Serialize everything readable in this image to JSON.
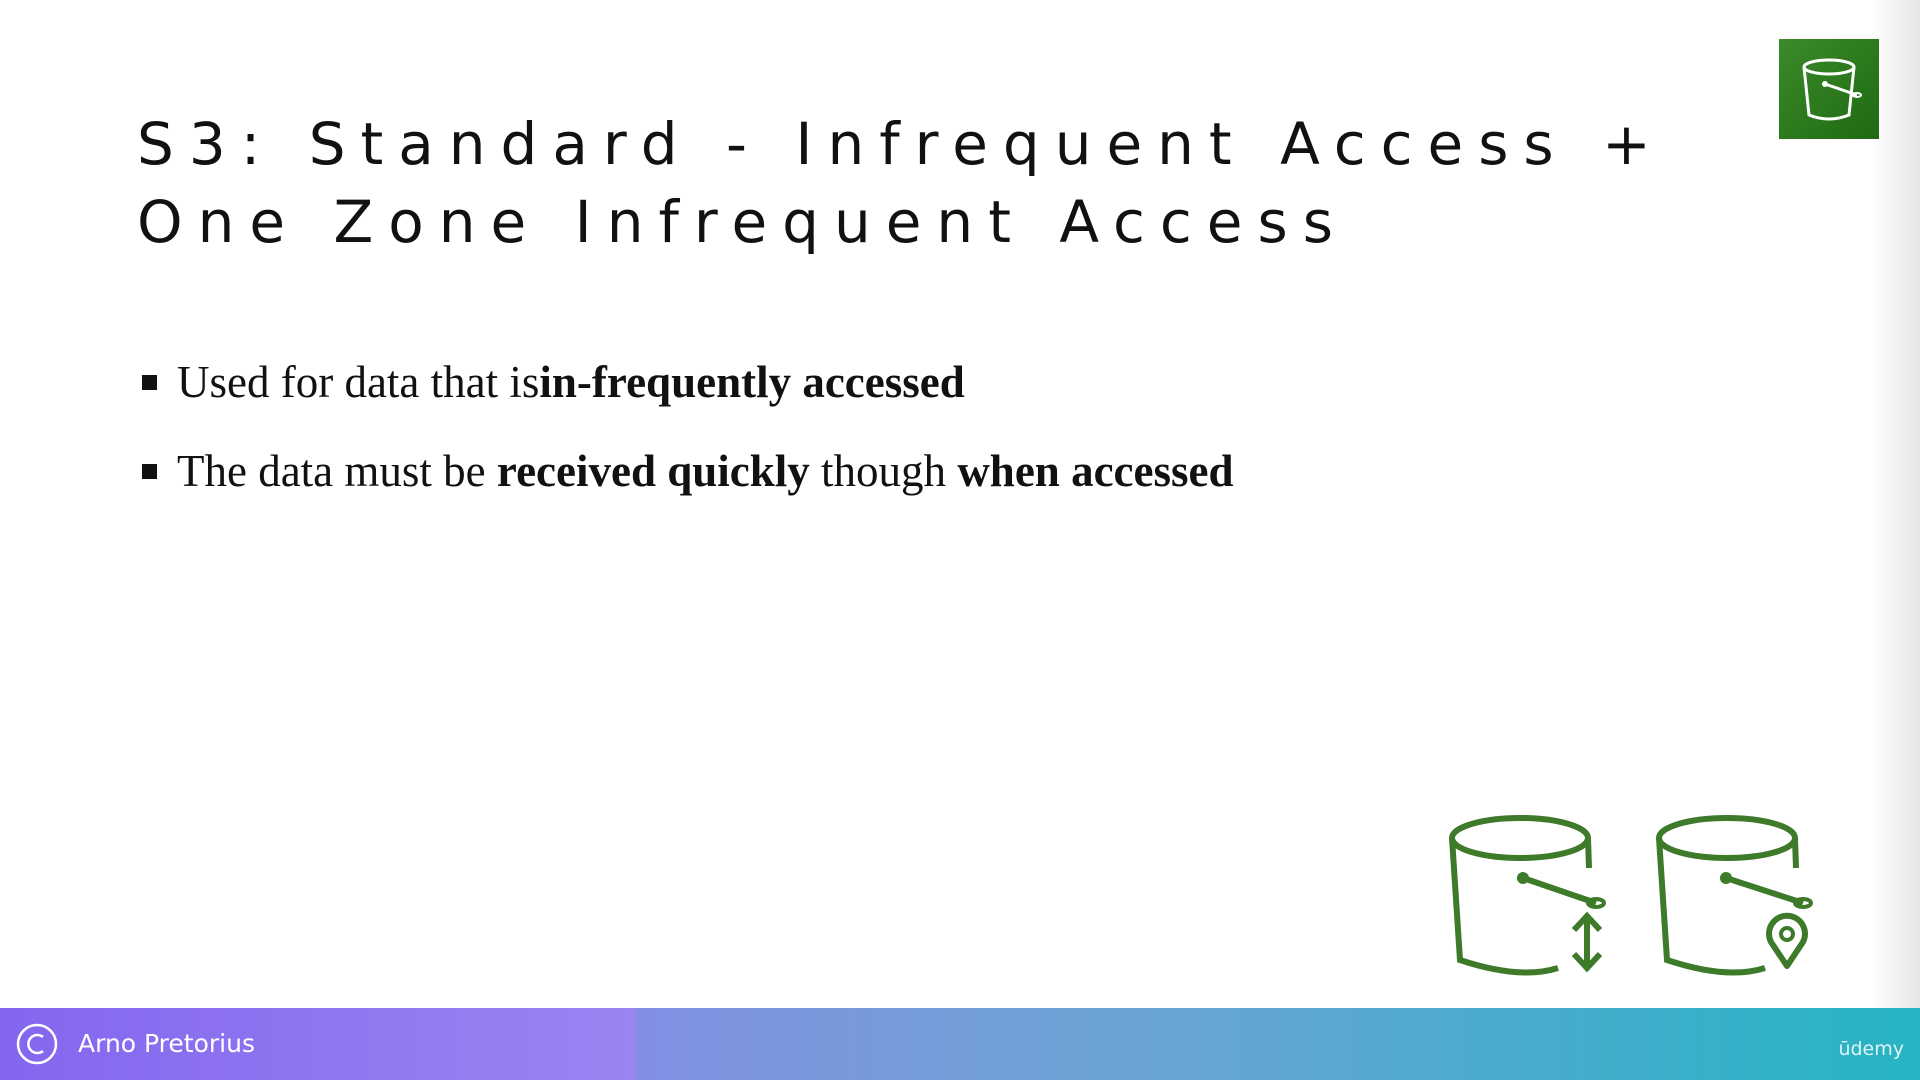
{
  "slide": {
    "title": "S3: Standard - Infrequent Access + One Zone Infrequent Access",
    "bullets": [
      {
        "parts": [
          {
            "text": "Used for data that is ",
            "bold": false
          },
          {
            "text": "in-frequently accessed",
            "bold": true
          }
        ]
      },
      {
        "parts": [
          {
            "text": "The data must be ",
            "bold": false
          },
          {
            "text": "received quickly",
            "bold": true
          },
          {
            "text": " though ",
            "bold": false
          },
          {
            "text": "when accessed",
            "bold": true
          }
        ]
      }
    ],
    "icons": {
      "logo": "s3-bucket-icon",
      "standard_ia": "s3-standard-ia-bucket-icon",
      "one_zone_ia": "s3-one-zone-ia-bucket-icon"
    }
  },
  "footer": {
    "author": "Arno Pretorius",
    "brand": "ūdemy"
  },
  "colors": {
    "icon_green": "#3d7a2a",
    "logo_green": "#2d7a1f",
    "footer_left": "#8a6ff0",
    "footer_right": "#25b4c4"
  }
}
